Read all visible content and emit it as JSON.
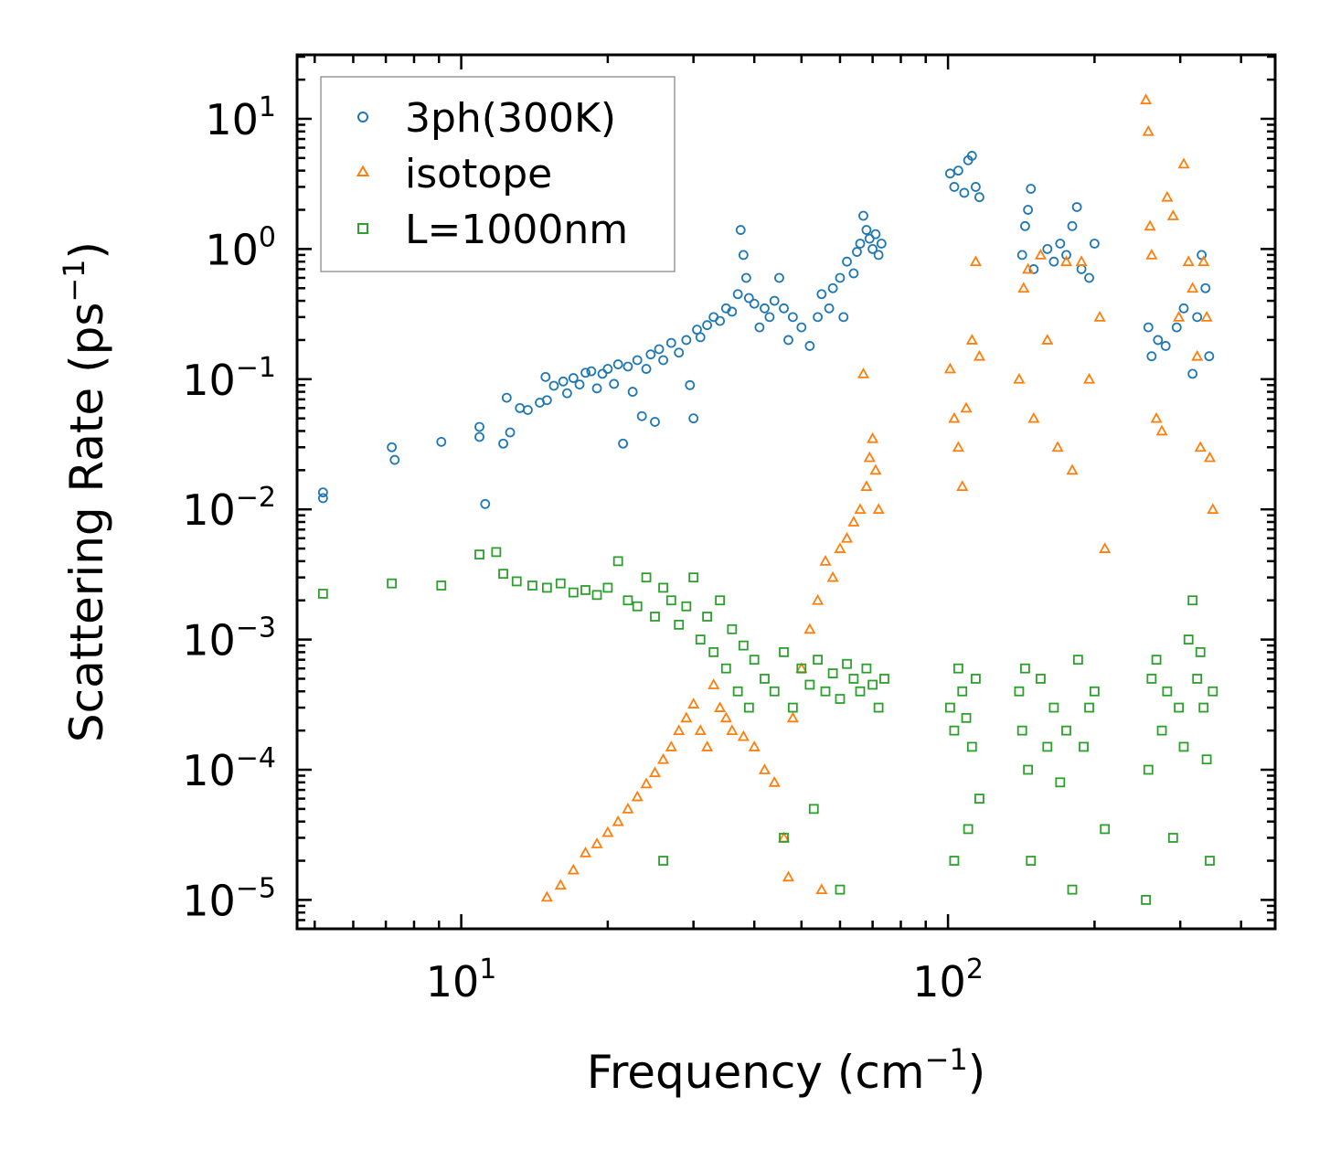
{
  "chart_data": {
    "type": "scatter",
    "title": "",
    "xlabel": {
      "main": "Frequency (cm",
      "sup": "−1",
      "end": ")"
    },
    "ylabel": {
      "main": "Scattering Rate (ps",
      "sup": "−1",
      "end": ")"
    },
    "xscale": "log",
    "yscale": "log",
    "xlim": [
      4.6,
      470
    ],
    "ylim": [
      6e-06,
      31
    ],
    "x_ticks": [
      {
        "value": 10,
        "base": "10",
        "exp": "1"
      },
      {
        "value": 100,
        "base": "10",
        "exp": "2"
      }
    ],
    "y_ticks": [
      {
        "value": 10,
        "base": "10",
        "exp": "1"
      },
      {
        "value": 1,
        "base": "10",
        "exp": "0"
      },
      {
        "value": 0.1,
        "base": "10",
        "exp": "−1"
      },
      {
        "value": 0.01,
        "base": "10",
        "exp": "−2"
      },
      {
        "value": 0.001,
        "base": "10",
        "exp": "−3"
      },
      {
        "value": 0.0001,
        "base": "10",
        "exp": "−4"
      },
      {
        "value": 1e-05,
        "base": "10",
        "exp": "−5"
      }
    ],
    "legend_position": "top-left",
    "series": [
      {
        "name": "3ph(300K)",
        "marker": "circle",
        "color": "#1f77b4",
        "points": [
          [
            5.2,
            0.0135
          ],
          [
            5.2,
            0.0122
          ],
          [
            7.2,
            0.03
          ],
          [
            7.3,
            0.024
          ],
          [
            9.1,
            0.033
          ],
          [
            10.9,
            0.043
          ],
          [
            10.9,
            0.036
          ],
          [
            11.2,
            0.011
          ],
          [
            12.2,
            0.032
          ],
          [
            12.4,
            0.072
          ],
          [
            12.6,
            0.039
          ],
          [
            13.2,
            0.06
          ],
          [
            13.7,
            0.058
          ],
          [
            14.5,
            0.066
          ],
          [
            14.9,
            0.104
          ],
          [
            15.0,
            0.069
          ],
          [
            15.5,
            0.089
          ],
          [
            16.2,
            0.096
          ],
          [
            16.5,
            0.078
          ],
          [
            17.0,
            0.102
          ],
          [
            17.5,
            0.091
          ],
          [
            18.0,
            0.112
          ],
          [
            18.5,
            0.115
          ],
          [
            19.0,
            0.085
          ],
          [
            19.5,
            0.11
          ],
          [
            20.0,
            0.12
          ],
          [
            20.6,
            0.092
          ],
          [
            21.0,
            0.13
          ],
          [
            21.5,
            0.032
          ],
          [
            22.0,
            0.125
          ],
          [
            22.5,
            0.08
          ],
          [
            23.0,
            0.14
          ],
          [
            23.5,
            0.052
          ],
          [
            24.0,
            0.12
          ],
          [
            24.5,
            0.155
          ],
          [
            25.0,
            0.047
          ],
          [
            25.5,
            0.17
          ],
          [
            26.0,
            0.14
          ],
          [
            27.0,
            0.19
          ],
          [
            28.0,
            0.16
          ],
          [
            29.0,
            0.2
          ],
          [
            29.5,
            0.09
          ],
          [
            30.0,
            0.05
          ],
          [
            30.5,
            0.24
          ],
          [
            31.0,
            0.21
          ],
          [
            32.0,
            0.26
          ],
          [
            33.0,
            0.3
          ],
          [
            34.0,
            0.28
          ],
          [
            35.0,
            0.35
          ],
          [
            36.0,
            0.33
          ],
          [
            37.0,
            0.45
          ],
          [
            37.5,
            1.4
          ],
          [
            38.0,
            0.9
          ],
          [
            38.5,
            0.6
          ],
          [
            39.0,
            0.42
          ],
          [
            40.0,
            0.38
          ],
          [
            41.0,
            0.25
          ],
          [
            42.0,
            0.35
          ],
          [
            43.0,
            0.3
          ],
          [
            44.0,
            0.4
          ],
          [
            45.0,
            0.6
          ],
          [
            46.0,
            0.35
          ],
          [
            47.0,
            0.2
          ],
          [
            48.0,
            0.3
          ],
          [
            50.0,
            0.25
          ],
          [
            52.0,
            0.18
          ],
          [
            54.0,
            0.3
          ],
          [
            55.0,
            0.45
          ],
          [
            57.0,
            0.35
          ],
          [
            58.0,
            0.5
          ],
          [
            60.0,
            0.6
          ],
          [
            61.0,
            0.3
          ],
          [
            62.0,
            0.8
          ],
          [
            64.0,
            0.65
          ],
          [
            65.0,
            0.95
          ],
          [
            66.0,
            1.1
          ],
          [
            67.0,
            1.8
          ],
          [
            68.0,
            1.4
          ],
          [
            69.0,
            1.2
          ],
          [
            70.0,
            1.0
          ],
          [
            71.0,
            1.3
          ],
          [
            72.0,
            0.9
          ],
          [
            73.0,
            1.1
          ],
          [
            101.0,
            3.8
          ],
          [
            103.0,
            3.0
          ],
          [
            105.0,
            4.0
          ],
          [
            108.0,
            2.7
          ],
          [
            110.0,
            4.8
          ],
          [
            112.0,
            5.2
          ],
          [
            114.0,
            3.0
          ],
          [
            116.0,
            2.5
          ],
          [
            142.0,
            0.9
          ],
          [
            144.0,
            1.5
          ],
          [
            146.0,
            2.0
          ],
          [
            148.0,
            2.9
          ],
          [
            150.0,
            0.7
          ],
          [
            160.0,
            1.0
          ],
          [
            165.0,
            0.8
          ],
          [
            170.0,
            1.1
          ],
          [
            175.0,
            0.9
          ],
          [
            180.0,
            1.5
          ],
          [
            184.0,
            2.1
          ],
          [
            188.0,
            0.7
          ],
          [
            195.0,
            0.6
          ],
          [
            200.0,
            1.1
          ],
          [
            258.0,
            0.25
          ],
          [
            262.0,
            0.15
          ],
          [
            270.0,
            0.2
          ],
          [
            280.0,
            0.18
          ],
          [
            295.0,
            0.25
          ],
          [
            305.0,
            0.35
          ],
          [
            318.0,
            0.11
          ],
          [
            325.0,
            0.3
          ],
          [
            332.0,
            0.9
          ],
          [
            338.0,
            0.5
          ],
          [
            344.0,
            0.15
          ]
        ]
      },
      {
        "name": "isotope",
        "marker": "triangle",
        "color": "#ff7f0e",
        "points": [
          [
            15.0,
            1.05e-05
          ],
          [
            16.0,
            1.3e-05
          ],
          [
            17.0,
            1.7e-05
          ],
          [
            18.0,
            2.3e-05
          ],
          [
            19.0,
            2.7e-05
          ],
          [
            20.0,
            3.3e-05
          ],
          [
            21.0,
            4e-05
          ],
          [
            22.0,
            5e-05
          ],
          [
            23.0,
            6.2e-05
          ],
          [
            24.0,
            7.8e-05
          ],
          [
            25.0,
            9.5e-05
          ],
          [
            26.0,
            0.00012
          ],
          [
            27.0,
            0.00015
          ],
          [
            28.0,
            0.0002
          ],
          [
            29.0,
            0.00025
          ],
          [
            30.0,
            0.00032
          ],
          [
            31.0,
            0.0002
          ],
          [
            32.0,
            0.00015
          ],
          [
            33.0,
            0.00045
          ],
          [
            34.0,
            0.0003
          ],
          [
            35.0,
            0.00025
          ],
          [
            36.0,
            0.0002
          ],
          [
            38.0,
            0.00018
          ],
          [
            40.0,
            0.00015
          ],
          [
            42.0,
            0.0001
          ],
          [
            44.0,
            8e-05
          ],
          [
            46.0,
            3e-05
          ],
          [
            47.0,
            1.5e-05
          ],
          [
            48.0,
            0.00025
          ],
          [
            50.0,
            0.0006
          ],
          [
            52.0,
            0.0012
          ],
          [
            54.0,
            0.002
          ],
          [
            55.0,
            1.2e-05
          ],
          [
            56.0,
            0.004
          ],
          [
            58.0,
            0.003
          ],
          [
            60.0,
            0.005
          ],
          [
            62.0,
            0.006
          ],
          [
            64.0,
            0.008
          ],
          [
            66.0,
            0.01
          ],
          [
            68.0,
            0.015
          ],
          [
            69.0,
            0.025
          ],
          [
            70.0,
            0.035
          ],
          [
            71.0,
            0.02
          ],
          [
            72.0,
            0.01
          ],
          [
            67.0,
            0.11
          ],
          [
            101.0,
            0.12
          ],
          [
            103.0,
            0.05
          ],
          [
            105.0,
            0.03
          ],
          [
            107.0,
            0.015
          ],
          [
            109.0,
            0.06
          ],
          [
            112.0,
            0.2
          ],
          [
            114.0,
            0.8
          ],
          [
            116.0,
            0.15
          ],
          [
            140.0,
            0.1
          ],
          [
            143.0,
            0.5
          ],
          [
            146.0,
            0.7
          ],
          [
            150.0,
            0.05
          ],
          [
            155.0,
            0.9
          ],
          [
            160.0,
            0.2
          ],
          [
            168.0,
            0.03
          ],
          [
            175.0,
            0.8
          ],
          [
            180.0,
            0.02
          ],
          [
            188.0,
            0.8
          ],
          [
            195.0,
            0.1
          ],
          [
            205.0,
            0.3
          ],
          [
            210.0,
            0.005
          ],
          [
            255.0,
            14.0
          ],
          [
            258.0,
            8.0
          ],
          [
            260.0,
            1.5
          ],
          [
            262.0,
            0.9
          ],
          [
            268.0,
            0.05
          ],
          [
            275.0,
            0.04
          ],
          [
            282.0,
            2.5
          ],
          [
            290.0,
            1.8
          ],
          [
            298.0,
            0.3
          ],
          [
            305.0,
            4.5
          ],
          [
            312.0,
            0.8
          ],
          [
            318.0,
            0.5
          ],
          [
            325.0,
            0.15
          ],
          [
            330.0,
            0.03
          ],
          [
            335.0,
            0.8
          ],
          [
            340.0,
            0.3
          ],
          [
            345.0,
            0.025
          ],
          [
            350.0,
            0.01
          ]
        ]
      },
      {
        "name": "L=1000nm",
        "marker": "square",
        "color": "#2ca02c",
        "points": [
          [
            5.2,
            0.00225
          ],
          [
            7.2,
            0.0027
          ],
          [
            9.1,
            0.0026
          ],
          [
            10.9,
            0.0045
          ],
          [
            11.8,
            0.0047
          ],
          [
            12.2,
            0.0032
          ],
          [
            13.0,
            0.0028
          ],
          [
            14.0,
            0.0026
          ],
          [
            15.0,
            0.0025
          ],
          [
            16.0,
            0.0027
          ],
          [
            17.0,
            0.0023
          ],
          [
            18.0,
            0.0024
          ],
          [
            19.0,
            0.0022
          ],
          [
            20.0,
            0.0025
          ],
          [
            21.0,
            0.004
          ],
          [
            22.0,
            0.002
          ],
          [
            23.0,
            0.0018
          ],
          [
            24.0,
            0.003
          ],
          [
            25.0,
            0.0015
          ],
          [
            26.0,
            0.0025
          ],
          [
            27.0,
            0.002
          ],
          [
            28.0,
            0.0013
          ],
          [
            29.0,
            0.0018
          ],
          [
            30.0,
            0.003
          ],
          [
            31.0,
            0.001
          ],
          [
            32.0,
            0.0015
          ],
          [
            33.0,
            0.0008
          ],
          [
            34.0,
            0.002
          ],
          [
            35.0,
            0.0006
          ],
          [
            36.0,
            0.0012
          ],
          [
            37.0,
            0.0004
          ],
          [
            38.0,
            0.0009
          ],
          [
            39.0,
            0.0003
          ],
          [
            40.0,
            0.0007
          ],
          [
            42.0,
            0.0005
          ],
          [
            44.0,
            0.0004
          ],
          [
            46.0,
            0.0008
          ],
          [
            48.0,
            0.0003
          ],
          [
            50.0,
            0.0006
          ],
          [
            52.0,
            0.00045
          ],
          [
            54.0,
            0.0007
          ],
          [
            56.0,
            0.0004
          ],
          [
            58.0,
            0.00055
          ],
          [
            60.0,
            0.00035
          ],
          [
            62.0,
            0.00065
          ],
          [
            64.0,
            0.0005
          ],
          [
            66.0,
            0.0004
          ],
          [
            68.0,
            0.0006
          ],
          [
            70.0,
            0.00045
          ],
          [
            72.0,
            0.0003
          ],
          [
            74.0,
            0.0005
          ],
          [
            60.0,
            1.2e-05
          ],
          [
            26.0,
            2e-05
          ],
          [
            46.0,
            3e-05
          ],
          [
            53.0,
            5e-05
          ],
          [
            101.0,
            0.0003
          ],
          [
            103.0,
            0.0002
          ],
          [
            105.0,
            0.0006
          ],
          [
            107.0,
            0.0004
          ],
          [
            109.0,
            0.00025
          ],
          [
            112.0,
            0.00015
          ],
          [
            114.0,
            0.0005
          ],
          [
            116.0,
            6e-05
          ],
          [
            103.0,
            2e-05
          ],
          [
            110.0,
            3.5e-05
          ],
          [
            140.0,
            0.0004
          ],
          [
            142.0,
            0.0002
          ],
          [
            144.0,
            0.0006
          ],
          [
            146.0,
            0.0001
          ],
          [
            148.0,
            2e-05
          ],
          [
            155.0,
            0.0005
          ],
          [
            160.0,
            0.00015
          ],
          [
            165.0,
            0.0003
          ],
          [
            170.0,
            8e-05
          ],
          [
            175.0,
            0.0002
          ],
          [
            180.0,
            1.2e-05
          ],
          [
            185.0,
            0.0007
          ],
          [
            190.0,
            0.00015
          ],
          [
            195.0,
            0.0003
          ],
          [
            200.0,
            0.0004
          ],
          [
            210.0,
            3.5e-05
          ],
          [
            255.0,
            1e-05
          ],
          [
            258.0,
            0.0001
          ],
          [
            262.0,
            0.0005
          ],
          [
            268.0,
            0.0007
          ],
          [
            275.0,
            0.0002
          ],
          [
            282.0,
            0.0004
          ],
          [
            290.0,
            3e-05
          ],
          [
            298.0,
            0.0003
          ],
          [
            305.0,
            0.00015
          ],
          [
            312.0,
            0.001
          ],
          [
            318.0,
            0.002
          ],
          [
            325.0,
            0.0005
          ],
          [
            330.0,
            0.0008
          ],
          [
            335.0,
            0.0003
          ],
          [
            340.0,
            0.00012
          ],
          [
            345.0,
            2e-05
          ],
          [
            350.0,
            0.0004
          ]
        ]
      }
    ]
  }
}
